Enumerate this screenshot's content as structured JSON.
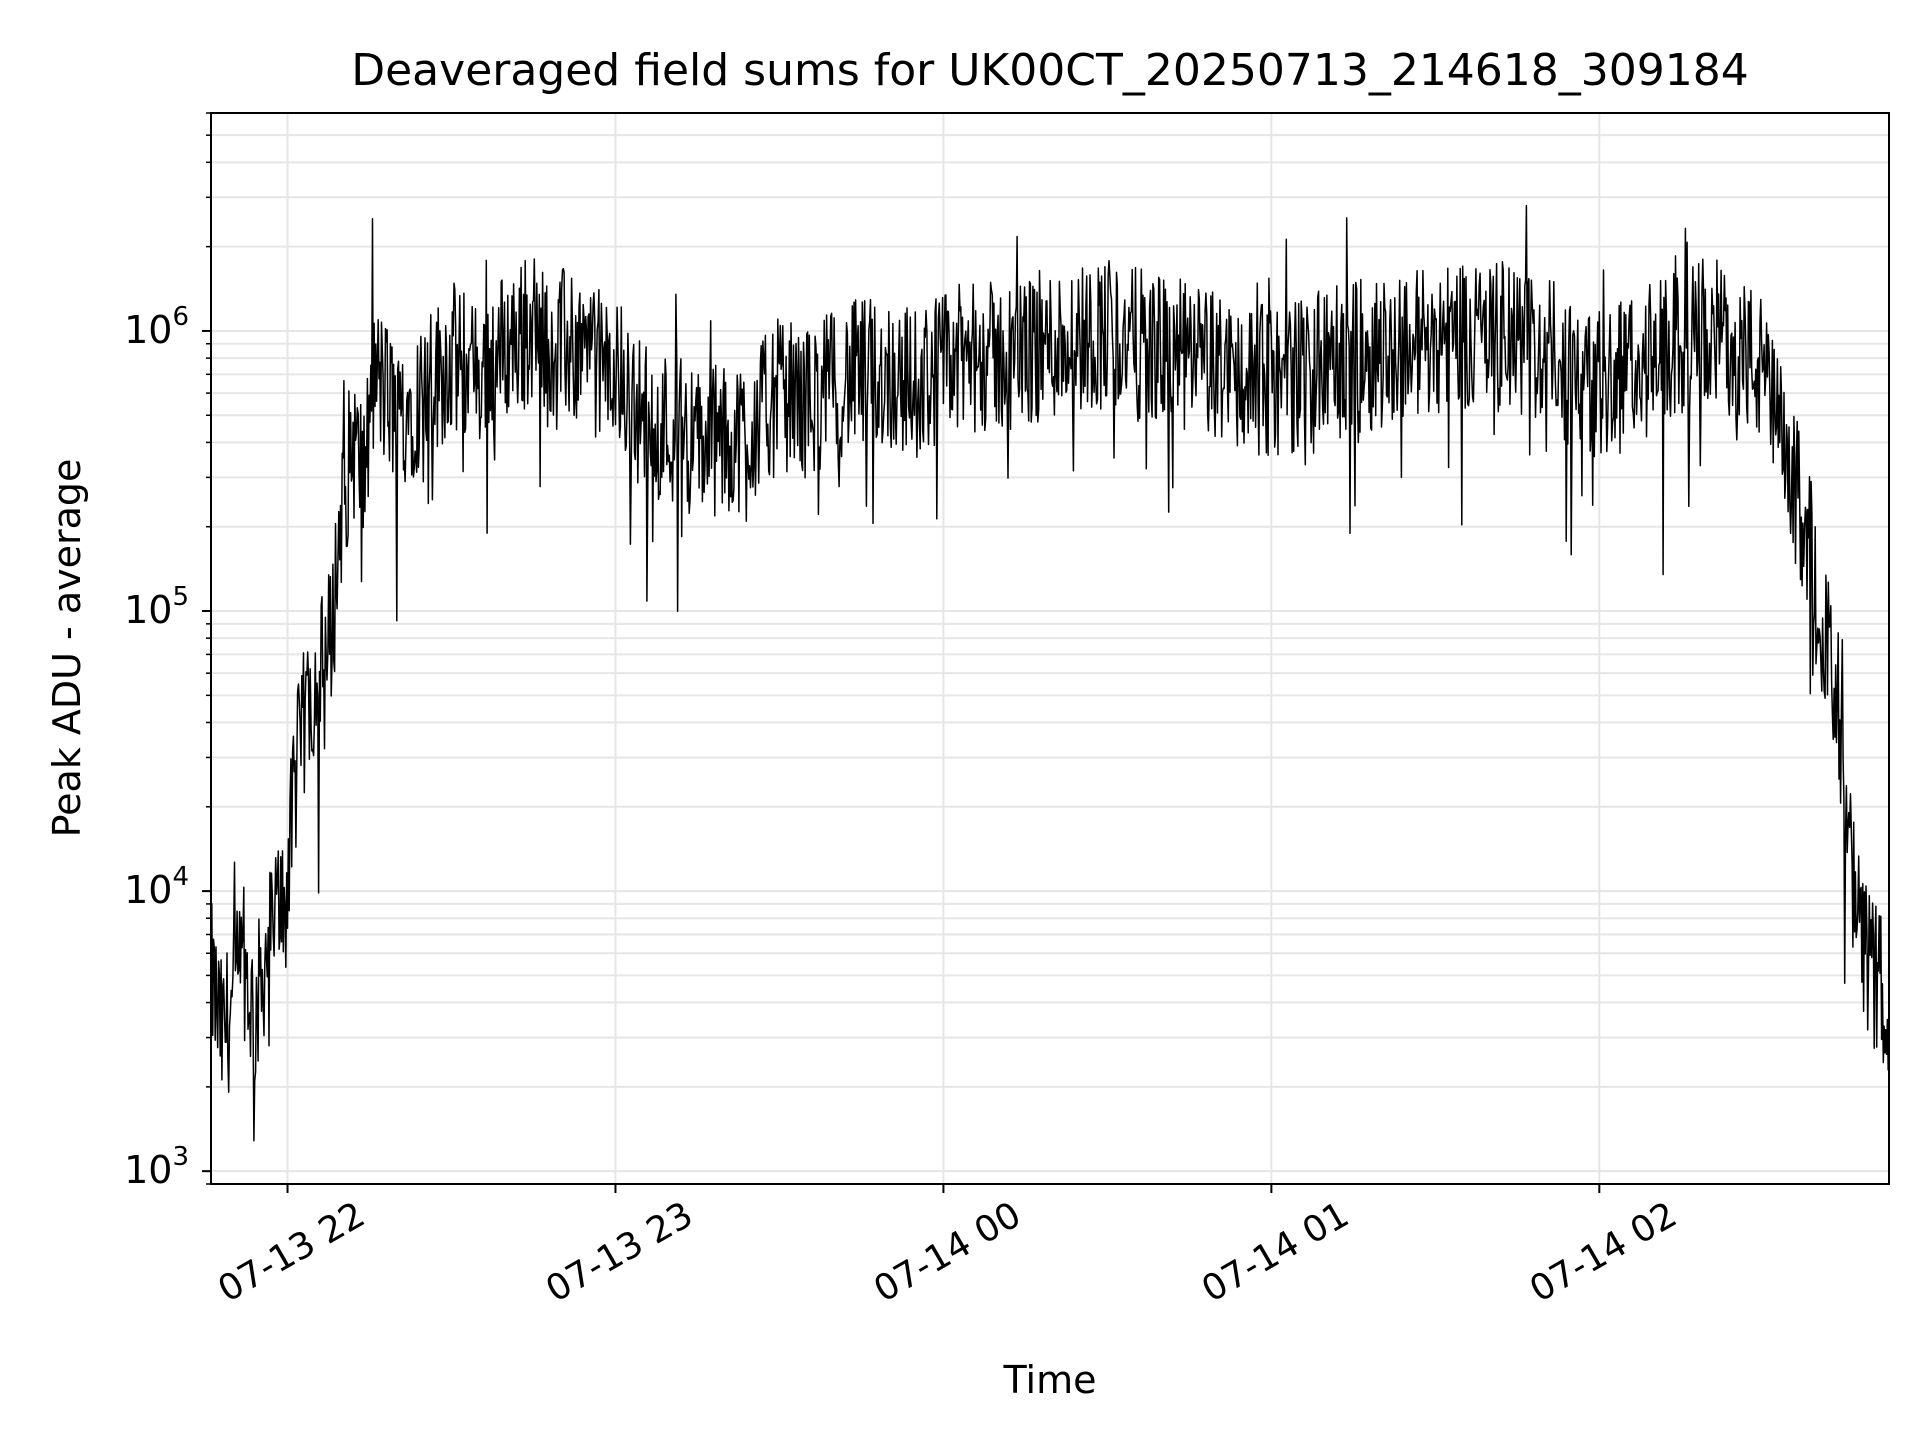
{
  "chart_data": {
    "type": "line",
    "title": "Deaveraged field sums for UK00CT_20250713_214618_309184",
    "xlabel": "Time",
    "ylabel": "Peak ADU - average",
    "yscale": "log",
    "ylim": [
      900,
      6000000
    ],
    "xlim": [
      "2025-07-13 21:46",
      "2025-07-14 02:53"
    ],
    "grid": true,
    "line_color": "#000000",
    "x_ticks": [
      {
        "value": "2025-07-13 22:00",
        "label": "07-13 22"
      },
      {
        "value": "2025-07-13 23:00",
        "label": "07-13 23"
      },
      {
        "value": "2025-07-14 00:00",
        "label": "07-14 00"
      },
      {
        "value": "2025-07-14 01:00",
        "label": "07-14 01"
      },
      {
        "value": "2025-07-14 02:00",
        "label": "07-14 02"
      }
    ],
    "y_ticks": [
      {
        "value": 1000,
        "base": "10",
        "exp": "3"
      },
      {
        "value": 10000,
        "base": "10",
        "exp": "4"
      },
      {
        "value": 100000,
        "base": "10",
        "exp": "5"
      },
      {
        "value": 1000000,
        "base": "10",
        "exp": "6"
      }
    ],
    "series": [
      {
        "x": [
          "2025-07-13 21:46",
          "2025-07-13 21:48",
          "2025-07-13 21:50",
          "2025-07-13 21:52",
          "2025-07-13 21:54",
          "2025-07-13 21:56",
          "2025-07-13 21:58",
          "2025-07-13 22:00",
          "2025-07-13 22:02",
          "2025-07-13 22:04",
          "2025-07-13 22:06",
          "2025-07-13 22:08",
          "2025-07-13 22:10",
          "2025-07-13 22:12",
          "2025-07-13 22:14",
          "2025-07-13 22:16",
          "2025-07-13 22:20",
          "2025-07-13 22:25",
          "2025-07-13 22:30",
          "2025-07-13 22:35",
          "2025-07-13 22:40",
          "2025-07-13 22:45",
          "2025-07-13 22:50",
          "2025-07-13 22:55",
          "2025-07-13 23:00",
          "2025-07-13 23:05",
          "2025-07-13 23:10",
          "2025-07-13 23:15",
          "2025-07-13 23:20",
          "2025-07-13 23:25",
          "2025-07-13 23:30",
          "2025-07-13 23:35",
          "2025-07-13 23:40",
          "2025-07-13 23:45",
          "2025-07-13 23:50",
          "2025-07-13 23:55",
          "2025-07-14 00:00",
          "2025-07-14 00:05",
          "2025-07-14 00:10",
          "2025-07-14 00:15",
          "2025-07-14 00:20",
          "2025-07-14 00:25",
          "2025-07-14 00:30",
          "2025-07-14 00:35",
          "2025-07-14 00:40",
          "2025-07-14 00:45",
          "2025-07-14 00:50",
          "2025-07-14 00:55",
          "2025-07-14 01:00",
          "2025-07-14 01:05",
          "2025-07-14 01:10",
          "2025-07-14 01:15",
          "2025-07-14 01:20",
          "2025-07-14 01:25",
          "2025-07-14 01:30",
          "2025-07-14 01:35",
          "2025-07-14 01:40",
          "2025-07-14 01:45",
          "2025-07-14 01:50",
          "2025-07-14 01:55",
          "2025-07-14 02:00",
          "2025-07-14 02:05",
          "2025-07-14 02:10",
          "2025-07-14 02:15",
          "2025-07-14 02:20",
          "2025-07-14 02:25",
          "2025-07-14 02:30",
          "2025-07-14 02:35",
          "2025-07-14 02:38",
          "2025-07-14 02:41",
          "2025-07-14 02:44",
          "2025-07-14 02:47",
          "2025-07-14 02:50",
          "2025-07-14 02:53"
        ],
        "y": [
          5000,
          3000,
          4000,
          5500,
          3500,
          6000,
          8000,
          12000,
          30000,
          50000,
          60000,
          80000,
          250000,
          400000,
          300000,
          700000,
          500000,
          600000,
          800000,
          700000,
          900000,
          1000000,
          900000,
          800000,
          700000,
          500000,
          450000,
          400000,
          400000,
          450000,
          600000,
          550000,
          650000,
          700000,
          700000,
          650000,
          750000,
          800000,
          800000,
          850000,
          900000,
          950000,
          1000000,
          900000,
          850000,
          800000,
          750000,
          700000,
          650000,
          700000,
          750000,
          800000,
          850000,
          900000,
          950000,
          1000000,
          950000,
          900000,
          850000,
          700000,
          650000,
          750000,
          800000,
          900000,
          1000000,
          900000,
          700000,
          300000,
          200000,
          100000,
          30000,
          8000,
          5000,
          4000
        ]
      }
    ]
  }
}
